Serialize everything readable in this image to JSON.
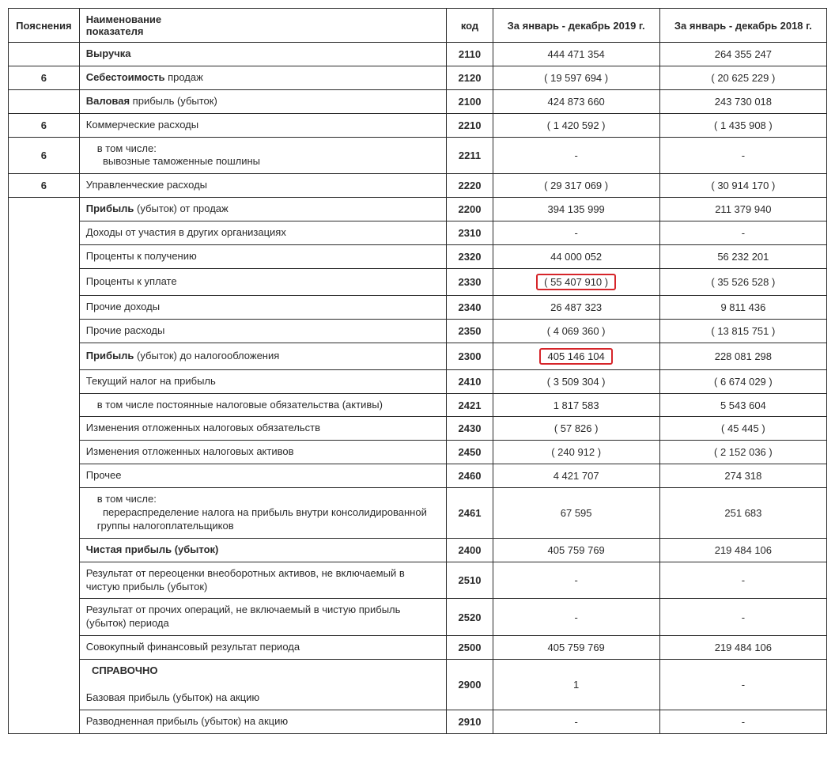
{
  "header": {
    "notes": "Пояснения",
    "name_line1": "Наименование",
    "name_line2": "показателя",
    "code": "код",
    "col2019": "За январь - декабрь 2019 г.",
    "col2018": "За январь - декабрь 2018 г."
  },
  "rows": [
    {
      "note": "",
      "name": "Выручка",
      "bold": "all",
      "code": "2110",
      "v2019": "444 471 354",
      "v2018": "264 355 247"
    },
    {
      "note": "6",
      "name_html": "<strong>Себестоимость</strong> продаж",
      "code": "2120",
      "v2019": "( 19 597 694 )",
      "v2018": "( 20 625 229 )"
    },
    {
      "note": "",
      "name_html": "<strong>Валовая</strong> прибыль (убыток)",
      "code": "2100",
      "v2019": "424 873 660",
      "v2018": "243 730 018"
    },
    {
      "note": "6",
      "name": "Коммерческие расходы",
      "code": "2210",
      "v2019": "( 1 420 592 )",
      "v2018": "( 1 435 908 )"
    },
    {
      "note": "6",
      "name_html": "в том числе:<br>&nbsp;&nbsp;вывозные таможенные пошлины",
      "indent": 1,
      "code": "2211",
      "v2019": "-",
      "v2018": "-"
    },
    {
      "note": "6",
      "name": "Управленческие расходы",
      "code": "2220",
      "v2019": "( 29 317 069 )",
      "v2018": "( 30 914 170 )"
    },
    {
      "note_span_start": true,
      "note": "",
      "name_html": "<strong>Прибыль</strong> (убыток) от продаж",
      "code": "2200",
      "v2019": "394 135 999",
      "v2018": "211 379 940"
    },
    {
      "name": "Доходы от участия в других организациях",
      "code": "2310",
      "v2019": "-",
      "v2018": "-"
    },
    {
      "name": "Проценты к получению",
      "code": "2320",
      "v2019": "44 000 052",
      "v2018": "56 232 201"
    },
    {
      "name": "Проценты к уплате",
      "code": "2330",
      "v2019": "( 55 407 910 )",
      "v2019_highlight": true,
      "v2018": "( 35 526 528 )"
    },
    {
      "name": "Прочие доходы",
      "code": "2340",
      "v2019": "26 487 323",
      "v2018": "9 811 436"
    },
    {
      "name": "Прочие расходы",
      "code": "2350",
      "v2019": "( 4 069 360 )",
      "v2018": "( 13 815 751 )"
    },
    {
      "name_html": "<strong>Прибыль</strong> (убыток) до налогообложения",
      "code": "2300",
      "v2019": "405 146 104",
      "v2019_highlight": true,
      "v2018": "228 081 298"
    },
    {
      "name": "Текущий налог на прибыль",
      "code": "2410",
      "v2019": "( 3 509 304 )",
      "v2018": "( 6 674 029 )"
    },
    {
      "name": "в том числе постоянные налоговые обязательства (активы)",
      "indent": 1,
      "code": "2421",
      "v2019": "1 817 583",
      "v2018": "5 543 604"
    },
    {
      "name": "Изменения отложенных налоговых обязательств",
      "code": "2430",
      "v2019": "( 57 826 )",
      "v2018": "( 45 445 )"
    },
    {
      "name": "Изменения отложенных налоговых активов",
      "code": "2450",
      "v2019": "( 240 912 )",
      "v2018": "( 2 152 036 )"
    },
    {
      "name": "Прочее",
      "code": "2460",
      "v2019": "4 421 707",
      "v2018": "274 318"
    },
    {
      "name_html": "в том числе:<br>&nbsp;&nbsp;перераспределение налога на прибыль внутри консолидированной группы налогоплательщиков",
      "indent": 1,
      "code": "2461",
      "v2019": "67 595",
      "v2018": "251 683"
    },
    {
      "name_html": "<strong>Чистая прибыль (убыток)</strong>",
      "code": "2400",
      "v2019": "405 759 769",
      "v2018": "219 484 106"
    },
    {
      "name": "Результат от переоценки внеоборотных активов, не включаемый в чистую прибыль (убыток)",
      "code": "2510",
      "v2019": "-",
      "v2018": "-"
    },
    {
      "name": "Результат от прочих операций, не включаемый в чистую прибыль (убыток) периода",
      "code": "2520",
      "v2019": "-",
      "v2018": "-"
    },
    {
      "name": "Совокупный финансовый результат периода",
      "code": "2500",
      "v2019": "405 759 769",
      "v2018": "219 484 106"
    },
    {
      "name_html": "&nbsp;&nbsp;<strong>СПРАВОЧНО</strong><br><br>Базовая прибыль (убыток) на акцию",
      "code": "2900",
      "v2019": "1",
      "v2018": "-"
    },
    {
      "name": "Разводненная прибыль (убыток) на акцию",
      "code": "2910",
      "v2019": "-",
      "v2018": "-"
    }
  ],
  "style": {
    "highlight_border_color": "#d6252a",
    "border_color": "#2a2a2a",
    "font_family": "Arial",
    "font_size_pt": 10,
    "background_color": "#ffffff",
    "text_color": "#2a2a2a"
  },
  "note_rowspan_from_index": 6,
  "note_rowspan_count": 19
}
